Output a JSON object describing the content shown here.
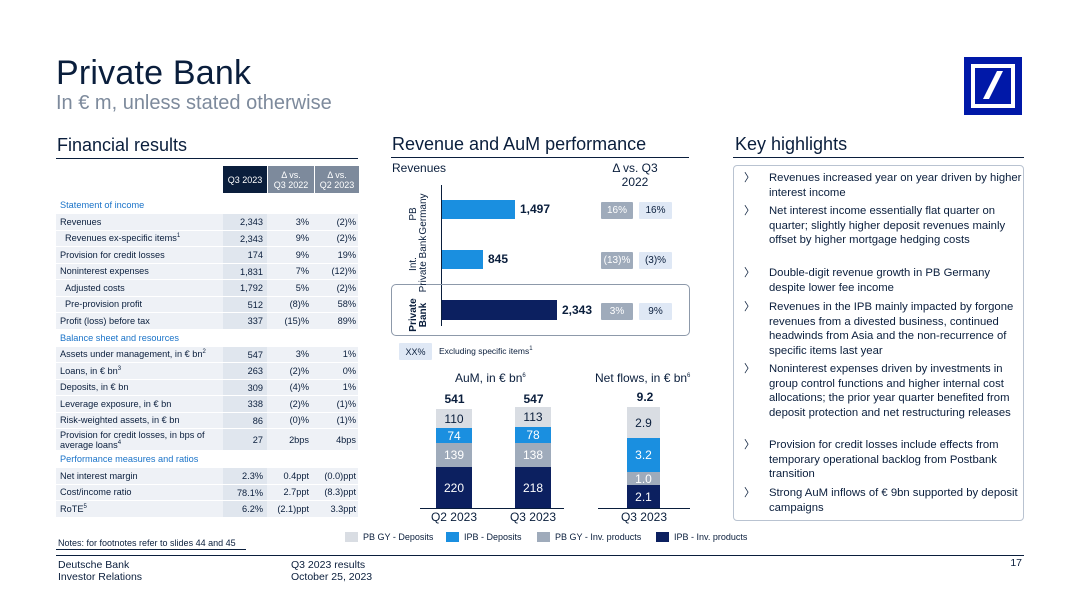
{
  "header": {
    "title": "Private Bank",
    "subtitle": "In € m, unless stated otherwise"
  },
  "colors": {
    "navy": "#0a1e3c",
    "dark_navy_bar": "#0c2060",
    "ipb_blue": "#0d7fd6",
    "pb_gy_blue": "#1a8fe0",
    "pb_gy_deposits": "#d9dde3",
    "pb_gy_inv": "#9fabbb",
    "logo_blue": "#0018a8"
  },
  "financial": {
    "section_title": "Financial results",
    "headers": {
      "q3": "Q3 2023",
      "vs_q3_line1": "Δ vs.",
      "vs_q3_line2": "Q3 2022",
      "vs_q2_line1": "Δ vs.",
      "vs_q2_line2": "Q2 2023"
    },
    "sections": {
      "income": "Statement of income",
      "balance": "Balance sheet and resources",
      "performance": "Performance measures and ratios"
    },
    "rows": [
      {
        "label": "Revenues",
        "sup": "",
        "q3": "2,343",
        "vs_q3": "3%",
        "vs_q2": "(2)%",
        "indent": false
      },
      {
        "label": "Revenues ex-specific items",
        "sup": "1",
        "q3": "2,343",
        "vs_q3": "9%",
        "vs_q2": "(2)%",
        "indent": true
      },
      {
        "label": "Provision for credit losses",
        "sup": "",
        "q3": "174",
        "vs_q3": "9%",
        "vs_q2": "19%",
        "indent": false
      },
      {
        "label": "Noninterest expenses",
        "sup": "",
        "q3": "1,831",
        "vs_q3": "7%",
        "vs_q2": "(12)%",
        "indent": false
      },
      {
        "label": "Adjusted costs",
        "sup": "",
        "q3": "1,792",
        "vs_q3": "5%",
        "vs_q2": "(2)%",
        "indent": true
      },
      {
        "label": "Pre-provision profit",
        "sup": "",
        "q3": "512",
        "vs_q3": "(8)%",
        "vs_q2": "58%",
        "indent": true
      },
      {
        "label": "Profit (loss) before tax",
        "sup": "",
        "q3": "337",
        "vs_q3": "(15)%",
        "vs_q2": "89%",
        "indent": false
      },
      {
        "label": "Assets under management, in € bn",
        "sup": "2",
        "q3": "547",
        "vs_q3": "3%",
        "vs_q2": "1%",
        "indent": false
      },
      {
        "label": "Loans, in € bn",
        "sup": "3",
        "q3": "263",
        "vs_q3": "(2)%",
        "vs_q2": "0%",
        "indent": false
      },
      {
        "label": "Deposits, in € bn",
        "sup": "",
        "q3": "309",
        "vs_q3": "(4)%",
        "vs_q2": "1%",
        "indent": false
      },
      {
        "label": "Leverage exposure, in € bn",
        "sup": "",
        "q3": "338",
        "vs_q3": "(2)%",
        "vs_q2": "(1)%",
        "indent": false
      },
      {
        "label": "Risk-weighted assets, in € bn",
        "sup": "",
        "q3": "86",
        "vs_q3": "(0)%",
        "vs_q2": "(1)%",
        "indent": false
      },
      {
        "label": "Provision for credit losses, in bps of average loans",
        "sup": "4",
        "q3": "27",
        "vs_q3": "2bps",
        "vs_q2": "4bps",
        "indent": false
      },
      {
        "label": "Net interest margin",
        "sup": "",
        "q3": "2.3%",
        "vs_q3": "0.4ppt",
        "vs_q2": "(0.0)ppt",
        "indent": false
      },
      {
        "label": "Cost/income ratio",
        "sup": "",
        "q3": "78.1%",
        "vs_q3": "2.7ppt",
        "vs_q2": "(8.3)ppt",
        "indent": false
      },
      {
        "label": "RoTE",
        "sup": "5",
        "q3": "6.2%",
        "vs_q3": "(2.1)ppt",
        "vs_q2": "3.3ppt",
        "indent": false
      }
    ],
    "notes": "Notes: for footnotes refer to slides 44 and 45"
  },
  "revenue_chart": {
    "section_title": "Revenue and AuM performance",
    "revenues_label": "Revenues",
    "delta_header_line1": "Δ vs. Q3",
    "delta_header_line2": "2022",
    "bars": [
      {
        "label_line1": "PB",
        "label_line2": "Germany",
        "value": 1497,
        "value_text": "1,497",
        "delta_grey": "16%",
        "delta_light": "16%"
      },
      {
        "label_line1": "Int.",
        "label_line2": "Private Bank",
        "value": 845,
        "value_text": "845",
        "delta_grey": "(13)%",
        "delta_light": "(3)%"
      },
      {
        "label_line1": "Private",
        "label_line2": "Bank",
        "value": 2343,
        "value_text": "2,343",
        "delta_grey": "3%",
        "delta_light": "9%"
      }
    ],
    "legend_badge": "XX%",
    "legend_text": "Excluding specific items",
    "legend_sup": "1"
  },
  "chart_data": [
    {
      "type": "bar",
      "orientation": "horizontal",
      "title": "Revenues",
      "categories": [
        "PB Germany",
        "Int. Private Bank",
        "Private Bank"
      ],
      "values": [
        1497,
        845,
        2343
      ]
    },
    {
      "type": "bar",
      "stacked": true,
      "title": "AuM, in € bn",
      "categories": [
        "Q2 2023",
        "Q3 2023"
      ],
      "series": [
        {
          "name": "PB GY - Inv. products",
          "values": [
            220,
            218
          ]
        },
        {
          "name": "PB GY - Deposits",
          "values": [
            139,
            138
          ]
        },
        {
          "name": "IPB - Deposits",
          "values": [
            74,
            78
          ]
        },
        {
          "name": "IPB - Inv. products",
          "values": [
            110,
            113
          ]
        }
      ],
      "totals": [
        541,
        547
      ]
    },
    {
      "type": "bar",
      "stacked": true,
      "title": "Net flows, in € bn",
      "categories": [
        "Q3 2023"
      ],
      "series": [
        {
          "name": "IPB - Inv. products",
          "values": [
            2.1
          ]
        },
        {
          "name": "PB GY - Inv. products",
          "values": [
            1.0
          ]
        },
        {
          "name": "IPB - Deposits",
          "values": [
            3.2
          ]
        },
        {
          "name": "PB GY - Deposits",
          "values": [
            2.9
          ]
        }
      ],
      "totals": [
        9.2
      ]
    }
  ],
  "aum_chart": {
    "title": "AuM, in € bn",
    "title_sup": "6",
    "totals": [
      "541",
      "547"
    ],
    "categories": [
      "Q2 2023",
      "Q3 2023"
    ],
    "stacks": [
      {
        "bottom": "220",
        "second": "139",
        "third": "74",
        "top": "110"
      },
      {
        "bottom": "218",
        "second": "138",
        "third": "78",
        "top": "113"
      }
    ]
  },
  "netflows_chart": {
    "title": "Net flows, in € bn",
    "title_sup": "6",
    "total": "9.2",
    "category": "Q3 2023",
    "stack": {
      "bottom": "2.1",
      "second": "1.0",
      "third": "3.2",
      "top": "2.9"
    }
  },
  "legend": [
    {
      "label": "PB GY - Deposits",
      "color": "#d9dde3"
    },
    {
      "label": "IPB - Deposits",
      "color": "#1a8fe0"
    },
    {
      "label": "PB GY - Inv. products",
      "color": "#9fabbb"
    },
    {
      "label": "IPB - Inv. products",
      "color": "#0c2060"
    }
  ],
  "highlights": {
    "section_title": "Key highlights",
    "chevron": "〉",
    "items": [
      "Revenues increased year on year driven by higher interest income",
      "Net interest income essentially flat quarter on quarter; slightly higher deposit revenues mainly offset by higher mortgage hedging costs",
      "Double-digit revenue growth in PB Germany despite lower fee income",
      "Revenues in the IPB mainly impacted by forgone revenues from a divested business, continued headwinds from Asia and the non-recurrence of specific items last year",
      "Noninterest expenses driven by investments in group control functions and higher internal cost allocations; the prior year quarter benefited from deposit protection and net restructuring releases",
      "Provision for credit losses include effects from temporary operational backlog from Postbank transition",
      "Strong AuM inflows of € 9bn supported by deposit campaigns"
    ]
  },
  "footer": {
    "company_line1": "Deutsche Bank",
    "company_line2": "Investor Relations",
    "event_line1": "Q3 2023 results",
    "event_line2": "October 25, 2023",
    "page_number": "17"
  }
}
